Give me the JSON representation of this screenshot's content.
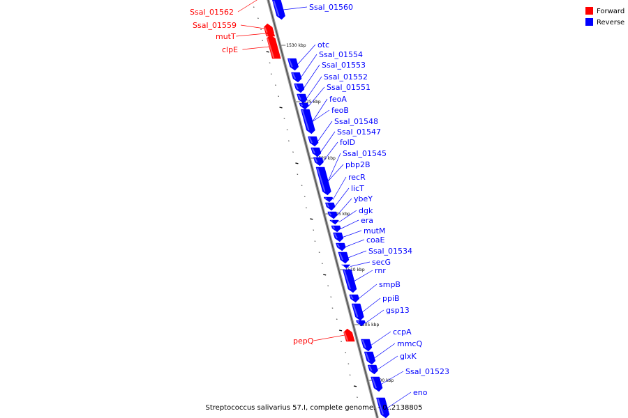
{
  "legend": {
    "forward_label": "Forward",
    "reverse_label": "Reverse",
    "forward_color": "#ff0000",
    "reverse_color": "#0000ff"
  },
  "caption": "Streptococcus salivarius 57.I, complete genome. - 0..2138805",
  "genes": [
    {
      "name": "Ssal_01562",
      "strand": "forward"
    },
    {
      "name": "Ssal_01560",
      "strand": "reverse"
    },
    {
      "name": "Ssal_01559",
      "strand": "forward"
    },
    {
      "name": "mutT",
      "strand": "forward"
    },
    {
      "name": "clpE",
      "strand": "forward"
    },
    {
      "name": "otc",
      "strand": "reverse"
    },
    {
      "name": "Ssal_01554",
      "strand": "reverse"
    },
    {
      "name": "Ssal_01553",
      "strand": "reverse"
    },
    {
      "name": "Ssal_01552",
      "strand": "reverse"
    },
    {
      "name": "Ssal_01551",
      "strand": "reverse"
    },
    {
      "name": "feoA",
      "strand": "reverse"
    },
    {
      "name": "feoB",
      "strand": "reverse"
    },
    {
      "name": "Ssal_01548",
      "strand": "reverse"
    },
    {
      "name": "Ssal_01547",
      "strand": "reverse"
    },
    {
      "name": "folD",
      "strand": "reverse"
    },
    {
      "name": "Ssal_01545",
      "strand": "reverse"
    },
    {
      "name": "pbp2B",
      "strand": "reverse"
    },
    {
      "name": "recR",
      "strand": "reverse"
    },
    {
      "name": "licT",
      "strand": "reverse"
    },
    {
      "name": "ybeY",
      "strand": "reverse"
    },
    {
      "name": "dgk",
      "strand": "reverse"
    },
    {
      "name": "era",
      "strand": "reverse"
    },
    {
      "name": "mutM",
      "strand": "reverse"
    },
    {
      "name": "coaE",
      "strand": "reverse"
    },
    {
      "name": "Ssal_01534",
      "strand": "reverse"
    },
    {
      "name": "secG",
      "strand": "reverse"
    },
    {
      "name": "rnr",
      "strand": "reverse"
    },
    {
      "name": "smpB",
      "strand": "reverse"
    },
    {
      "name": "ppiB",
      "strand": "reverse"
    },
    {
      "name": "gsp13",
      "strand": "reverse"
    },
    {
      "name": "pepQ",
      "strand": "forward"
    },
    {
      "name": "ccpA",
      "strand": "reverse"
    },
    {
      "name": "mmcQ",
      "strand": "reverse"
    },
    {
      "name": "glxK",
      "strand": "reverse"
    },
    {
      "name": "Ssal_01523",
      "strand": "reverse"
    },
    {
      "name": "eno",
      "strand": "reverse"
    }
  ],
  "ticks": [
    "1530 kbp",
    "1525 kbp",
    "1520 kbp",
    "1515 kbp",
    "1510 kbp",
    "1505 kbp",
    "1500 kbp"
  ]
}
